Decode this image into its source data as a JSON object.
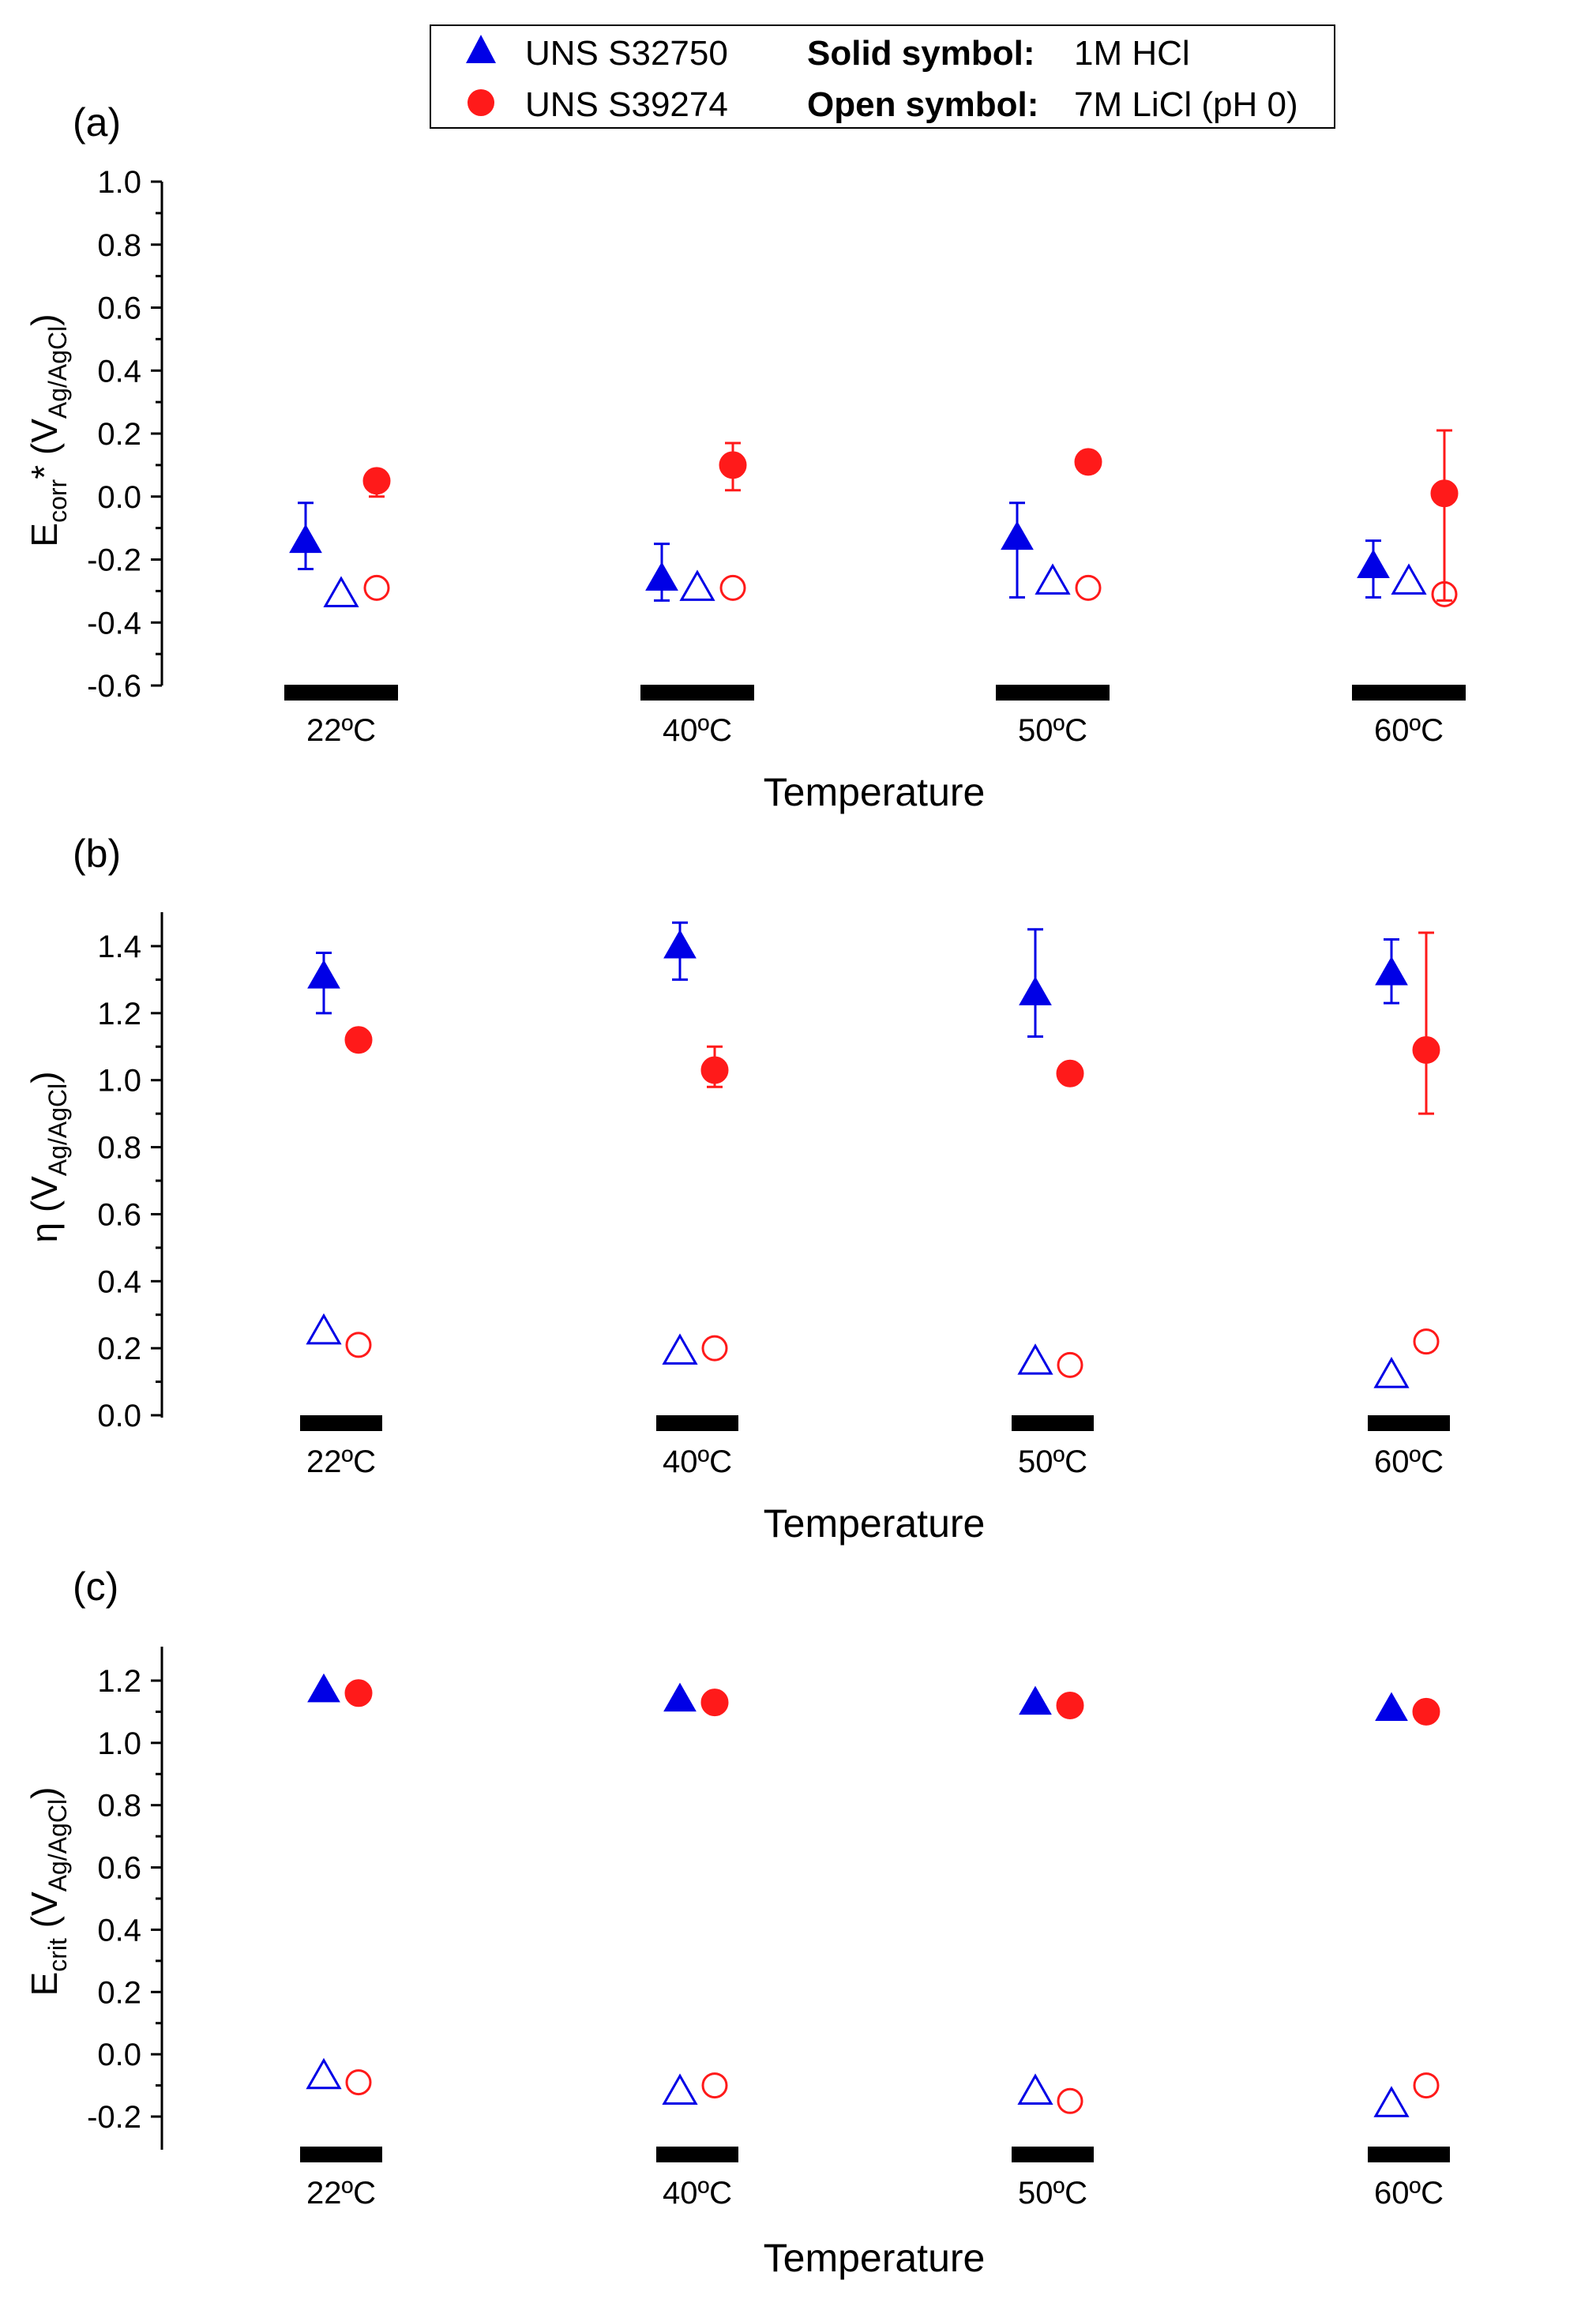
{
  "legend": {
    "series_a_label": "UNS S32750",
    "series_b_label": "UNS S39274",
    "solid_label": "Solid symbol:",
    "solid_value": "1M HCl",
    "open_label": "Open symbol:",
    "open_value": "7M LiCl (pH 0)"
  },
  "colors": {
    "series_a": "#0000e6",
    "series_b": "#ff1a1a",
    "axis": "#000000"
  },
  "chart_data": [
    {
      "type": "scatter",
      "panel_label": "(a)",
      "ylabel_main": "E",
      "ylabel_sub": "corr",
      "ylabel_rest": "* (V",
      "ylabel_rest_sub": "Ag/AgCl",
      "ylabel_close": ")",
      "xlabel": "Temperature",
      "ylim": [
        -0.6,
        1.0
      ],
      "ytick_step": 0.2,
      "yticks": [
        "1.0",
        "0.8",
        "0.6",
        "0.4",
        "0.2",
        "0.0",
        "-0.2",
        "-0.4",
        "-0.6"
      ],
      "categories": [
        "22ºC",
        "40ºC",
        "50ºC",
        "60ºC"
      ],
      "series": [
        {
          "name": "UNS S32750",
          "condition": "1M HCl",
          "marker": "triangle",
          "filled": true,
          "values": [
            -0.14,
            -0.26,
            -0.13,
            -0.22
          ],
          "error": [
            [
              -0.23,
              -0.02
            ],
            [
              -0.33,
              -0.15
            ],
            [
              -0.32,
              -0.02
            ],
            [
              -0.32,
              -0.14
            ]
          ]
        },
        {
          "name": "UNS S32750",
          "condition": "7M LiCl (pH 0)",
          "marker": "triangle",
          "filled": false,
          "values": [
            -0.31,
            -0.29,
            -0.27,
            -0.27
          ],
          "error": null
        },
        {
          "name": "UNS S39274",
          "condition": "1M HCl",
          "marker": "circle",
          "filled": true,
          "values": [
            0.05,
            0.1,
            0.11,
            0.01
          ],
          "error": [
            [
              0.0,
              0.06
            ],
            [
              0.02,
              0.17
            ],
            [
              0.09,
              0.13
            ],
            [
              -0.33,
              0.21
            ]
          ]
        },
        {
          "name": "UNS S39274",
          "condition": "7M LiCl (pH 0)",
          "marker": "circle",
          "filled": false,
          "values": [
            -0.29,
            -0.29,
            -0.29,
            -0.31
          ],
          "error": null
        }
      ]
    },
    {
      "type": "scatter",
      "panel_label": "(b)",
      "ylabel_main": "η (V",
      "ylabel_sub": "Ag/AgCl",
      "ylabel_rest": ")",
      "ylabel_rest_sub": "",
      "ylabel_close": "",
      "xlabel": "Temperature",
      "ylim": [
        0.0,
        1.5
      ],
      "ytick_step": 0.2,
      "yticks": [
        "1.4",
        "1.2",
        "1.0",
        "0.8",
        "0.6",
        "0.4",
        "0.2",
        "0.0"
      ],
      "categories": [
        "22ºC",
        "40ºC",
        "50ºC",
        "60ºC"
      ],
      "series": [
        {
          "name": "UNS S32750",
          "condition": "1M HCl",
          "marker": "triangle",
          "filled": true,
          "values": [
            1.31,
            1.4,
            1.26,
            1.32
          ],
          "error": [
            [
              1.2,
              1.38
            ],
            [
              1.3,
              1.47
            ],
            [
              1.13,
              1.45
            ],
            [
              1.23,
              1.42
            ]
          ]
        },
        {
          "name": "UNS S32750",
          "condition": "7M LiCl (pH 0)",
          "marker": "triangle",
          "filled": false,
          "values": [
            0.25,
            0.19,
            0.16,
            0.12
          ],
          "error": null
        },
        {
          "name": "UNS S39274",
          "condition": "1M HCl",
          "marker": "circle",
          "filled": true,
          "values": [
            1.12,
            1.03,
            1.02,
            1.09
          ],
          "error": [
            [
              1.1,
              1.13
            ],
            [
              0.98,
              1.1
            ],
            [
              1.0,
              1.03
            ],
            [
              0.9,
              1.44
            ]
          ]
        },
        {
          "name": "UNS S39274",
          "condition": "7M LiCl (pH 0)",
          "marker": "circle",
          "filled": false,
          "values": [
            0.21,
            0.2,
            0.15,
            0.22
          ],
          "error": null
        }
      ]
    },
    {
      "type": "scatter",
      "panel_label": "(c)",
      "ylabel_main": "E",
      "ylabel_sub": "crit",
      "ylabel_rest": " (V",
      "ylabel_rest_sub": "Ag/AgCl",
      "ylabel_close": ")",
      "xlabel": "Temperature",
      "ylim": [
        -0.3,
        1.3
      ],
      "ytick_step": 0.2,
      "yticks": [
        "1.2",
        "1.0",
        "0.8",
        "0.6",
        "0.4",
        "0.2",
        "0.0",
        "-0.2"
      ],
      "categories": [
        "22ºC",
        "40ºC",
        "50ºC",
        "60ºC"
      ],
      "series": [
        {
          "name": "UNS S32750",
          "condition": "1M HCl",
          "marker": "triangle",
          "filled": true,
          "values": [
            1.17,
            1.14,
            1.13,
            1.11
          ],
          "error": null
        },
        {
          "name": "UNS S32750",
          "condition": "7M LiCl (pH 0)",
          "marker": "triangle",
          "filled": false,
          "values": [
            -0.07,
            -0.12,
            -0.12,
            -0.16
          ],
          "error": null
        },
        {
          "name": "UNS S39274",
          "condition": "1M HCl",
          "marker": "circle",
          "filled": true,
          "values": [
            1.16,
            1.13,
            1.12,
            1.1
          ],
          "error": null
        },
        {
          "name": "UNS S39274",
          "condition": "7M LiCl (pH 0)",
          "marker": "circle",
          "filled": false,
          "values": [
            -0.09,
            -0.1,
            -0.15,
            -0.1
          ],
          "error": null
        }
      ]
    }
  ]
}
